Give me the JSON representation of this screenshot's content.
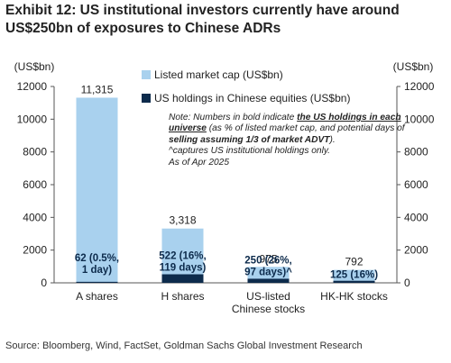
{
  "title_line1": "Exhibit 12: US institutional investors currently have around",
  "title_line2": "US$250bn of exposures to Chinese ADRs",
  "source": "Source: Bloomberg, Wind, FactSet, Goldman Sachs Global Investment Research",
  "note": {
    "p1": "Note: Numbers in bold indicate ",
    "u1": "the US holdings in each universe",
    "p2": " (as % of listed market cap, and potential days of ",
    "b1": "selling assuming 1/3 of market ADVT",
    "p3": ").",
    "line2": "^captures US institutional holdings only.",
    "line3": "As of Apr 2025"
  },
  "colors": {
    "listed": "#a9d1ee",
    "us": "#0d2b4c",
    "axis": "#555555"
  },
  "chart_data": {
    "type": "bar",
    "categories": [
      "A shares",
      "H shares",
      "US-listed\nChinese stocks",
      "HK-HK stocks"
    ],
    "series": [
      {
        "name": "Listed market cap (US$bn)",
        "values": [
          11315,
          3318,
          975,
          792
        ]
      },
      {
        "name": "US holdings in Chinese equities (US$bn)",
        "values": [
          62,
          522,
          250,
          125
        ]
      }
    ],
    "listed_labels": [
      "11,315",
      "3,318",
      "975",
      "792"
    ],
    "us_labels": [
      [
        "62 (0.5%,",
        "1 day)"
      ],
      [
        "522 (16%,",
        "119 days)"
      ],
      [
        "250 (26%,",
        "97 days)^"
      ],
      [
        "125 (16%)"
      ]
    ],
    "y_left_label": "(US$bn)",
    "y_right_label": "(US$bn)",
    "ylim_left": [
      0,
      12000
    ],
    "ylim_right": [
      0,
      12000
    ],
    "yticks": [
      0,
      2000,
      4000,
      6000,
      8000,
      10000,
      12000
    ],
    "ytick_labels": [
      "0",
      "2000",
      "4000",
      "6000",
      "8000",
      "10000",
      "12000"
    ],
    "grid": false,
    "legend_placement": "top-center"
  }
}
